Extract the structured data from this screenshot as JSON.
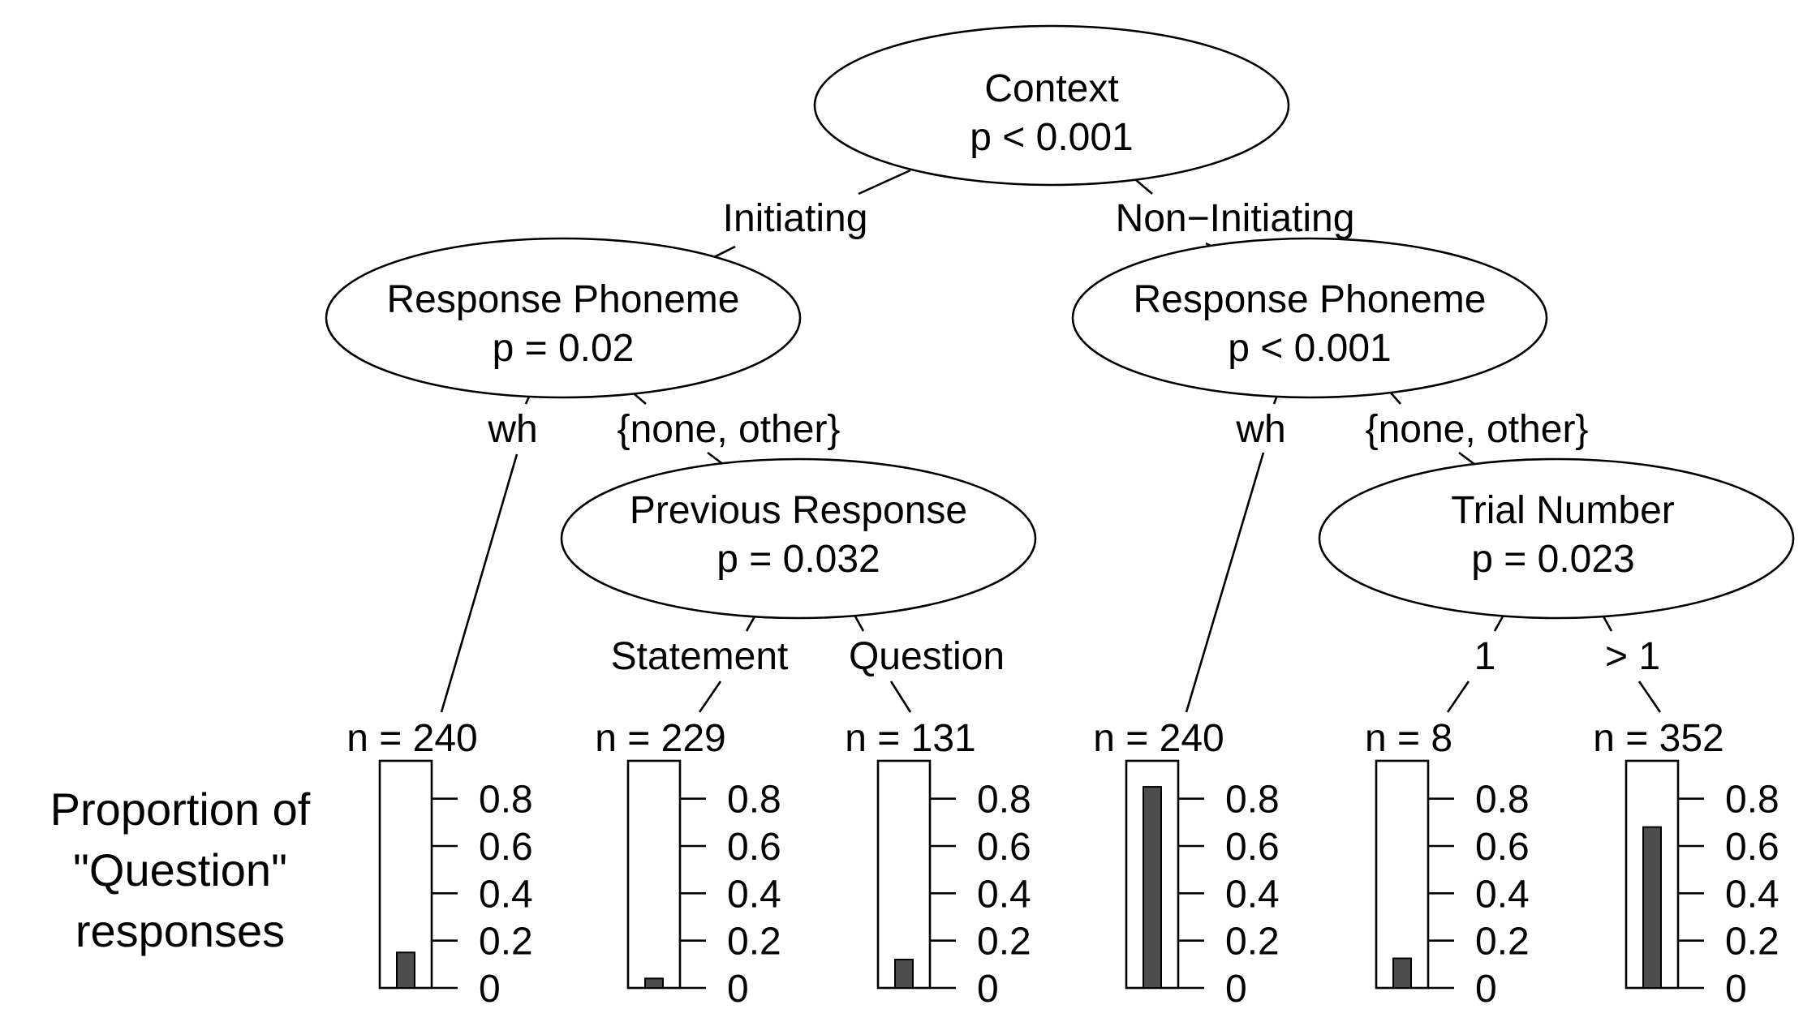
{
  "side_label": {
    "lines": [
      "Proportion of",
      "\"Question\"",
      "responses"
    ]
  },
  "nodes": [
    {
      "id": "context",
      "name": "Context",
      "p": "p < 0.001"
    },
    {
      "id": "response-phoneme-left",
      "name": "Response Phoneme",
      "p": "p = 0.02"
    },
    {
      "id": "previous-response",
      "name": "Previous Response",
      "p": "p = 0.032"
    },
    {
      "id": "response-phoneme-right",
      "name": "Response Phoneme",
      "p": "p < 0.001"
    },
    {
      "id": "trial-number",
      "name": "Trial Number",
      "p": "p = 0.023"
    }
  ],
  "edges": [
    {
      "id": "initiating",
      "label": "Initiating"
    },
    {
      "id": "non-initiating",
      "label": "Non−Initiating"
    },
    {
      "id": "left-wh",
      "label": "wh"
    },
    {
      "id": "left-none-other",
      "label": "{none, other}"
    },
    {
      "id": "statement",
      "label": "Statement"
    },
    {
      "id": "question",
      "label": "Question"
    },
    {
      "id": "right-wh",
      "label": "wh"
    },
    {
      "id": "right-none-other",
      "label": "{none, other}"
    },
    {
      "id": "trial-1",
      "label": "1"
    },
    {
      "id": "trial-gt1",
      "label": "> 1"
    }
  ],
  "tick_labels": [
    "0.8",
    "0.6",
    "0.4",
    "0.2",
    "0"
  ],
  "chart_data": {
    "type": "bar",
    "ylabel": "Proportion of \"Question\" responses",
    "ylim": [
      0,
      0.96
    ],
    "categories": [
      "n = 240",
      "n = 229",
      "n = 131",
      "n = 240",
      "n = 8",
      "n = 352"
    ],
    "values": [
      0.15,
      0.04,
      0.12,
      0.85,
      0.125,
      0.68
    ]
  }
}
